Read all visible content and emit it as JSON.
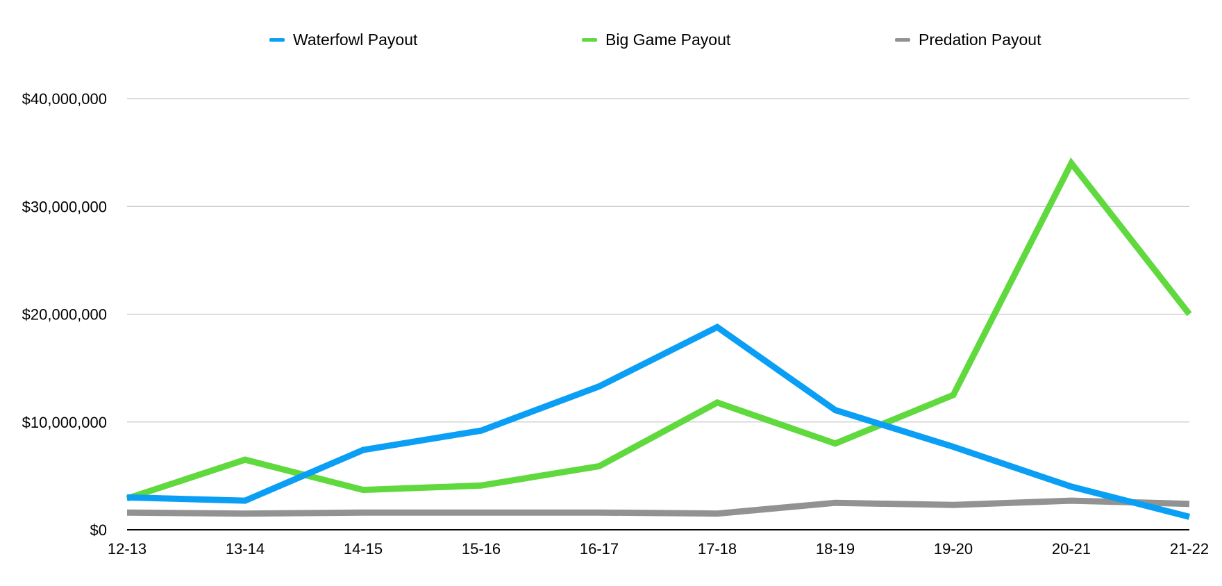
{
  "chart_data": {
    "type": "line",
    "title": "",
    "xlabel": "",
    "ylabel": "",
    "categories": [
      "12-13",
      "13-14",
      "14-15",
      "15-16",
      "16-17",
      "17-18",
      "18-19",
      "19-20",
      "20-21",
      "21-22"
    ],
    "y_tick_labels": [
      "$0",
      "$10,000,000",
      "$20,000,000",
      "$30,000,000",
      "$40,000,000"
    ],
    "y_ticks": [
      0,
      10000000,
      20000000,
      30000000,
      40000000
    ],
    "ylim": [
      0,
      40000000
    ],
    "grid": true,
    "legend_position": "top",
    "series": [
      {
        "name": "Waterfowl Payout",
        "color": "#0a9ff5",
        "values": [
          3000000,
          2700000,
          7400000,
          9200000,
          13300000,
          18800000,
          11100000,
          7700000,
          4000000,
          1200000
        ]
      },
      {
        "name": "Big Game Payout",
        "color": "#5fd93d",
        "values": [
          2900000,
          6500000,
          3700000,
          4100000,
          5900000,
          11800000,
          8000000,
          12500000,
          34000000,
          20000000
        ]
      },
      {
        "name": "Predation Payout",
        "color": "#929292",
        "values": [
          1600000,
          1500000,
          1600000,
          1600000,
          1600000,
          1500000,
          2500000,
          2300000,
          2700000,
          2400000
        ]
      }
    ]
  }
}
